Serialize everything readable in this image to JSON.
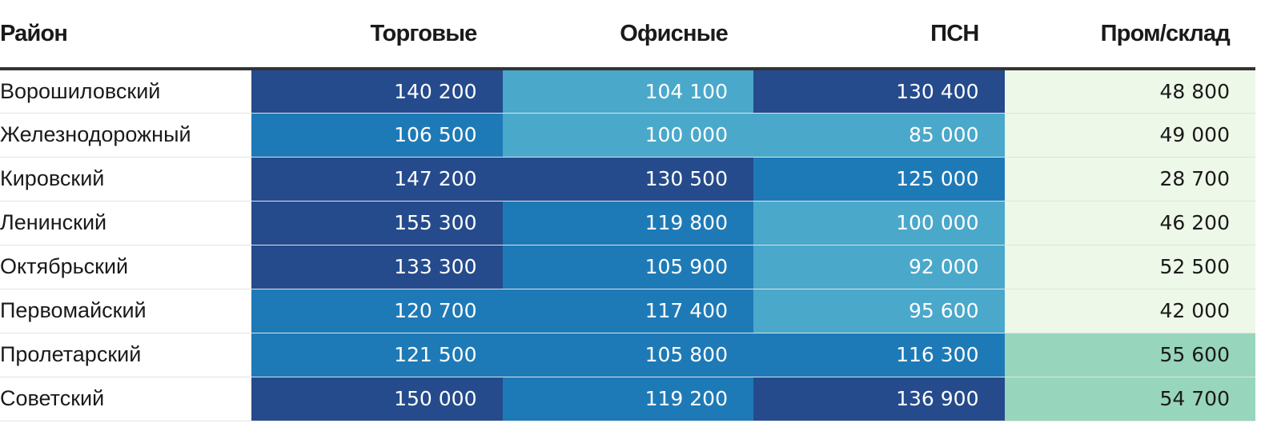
{
  "headers": [
    "Район",
    "Торговые",
    "Офисные",
    "ПСН",
    "Пром/склад"
  ],
  "rows": [
    {
      "name": "Ворошиловский",
      "values": [
        "140 200",
        "104 100",
        "130 400",
        "48 800"
      ],
      "colors": [
        "#254b8c",
        "#4aa8cb",
        "#254b8c",
        "#eef8e8"
      ]
    },
    {
      "name": "Железнодорожный",
      "values": [
        "106 500",
        "100 000",
        "85 000",
        "49 000"
      ],
      "colors": [
        "#1e7ab7",
        "#4aa8cb",
        "#4aa8cb",
        "#eef8e8"
      ]
    },
    {
      "name": "Кировский",
      "values": [
        "147 200",
        "130 500",
        "125 000",
        "28 700"
      ],
      "colors": [
        "#254b8c",
        "#254b8c",
        "#1e7ab7",
        "#eef8e8"
      ]
    },
    {
      "name": "Ленинский",
      "values": [
        "155 300",
        "119 800",
        "100 000",
        "46 200"
      ],
      "colors": [
        "#254b8c",
        "#1e7ab7",
        "#4aa8cb",
        "#eef8e8"
      ]
    },
    {
      "name": "Октябрьский",
      "values": [
        "133 300",
        "105 900",
        "92 000",
        "52 500"
      ],
      "colors": [
        "#254b8c",
        "#1e7ab7",
        "#4aa8cb",
        "#eef8e8"
      ]
    },
    {
      "name": "Первомайский",
      "values": [
        "120 700",
        "117 400",
        "95 600",
        "42 000"
      ],
      "colors": [
        "#1e7ab7",
        "#1e7ab7",
        "#4aa8cb",
        "#eef8e8"
      ]
    },
    {
      "name": "Пролетарский",
      "values": [
        "121 500",
        "105 800",
        "116 300",
        "55 600"
      ],
      "colors": [
        "#1e7ab7",
        "#1e7ab7",
        "#1e7ab7",
        "#97d5bd"
      ]
    },
    {
      "name": "Советский",
      "values": [
        "150 000",
        "119 200",
        "136 900",
        "54 700"
      ],
      "colors": [
        "#254b8c",
        "#1e7ab7",
        "#254b8c",
        "#97d5bd"
      ]
    }
  ]
}
